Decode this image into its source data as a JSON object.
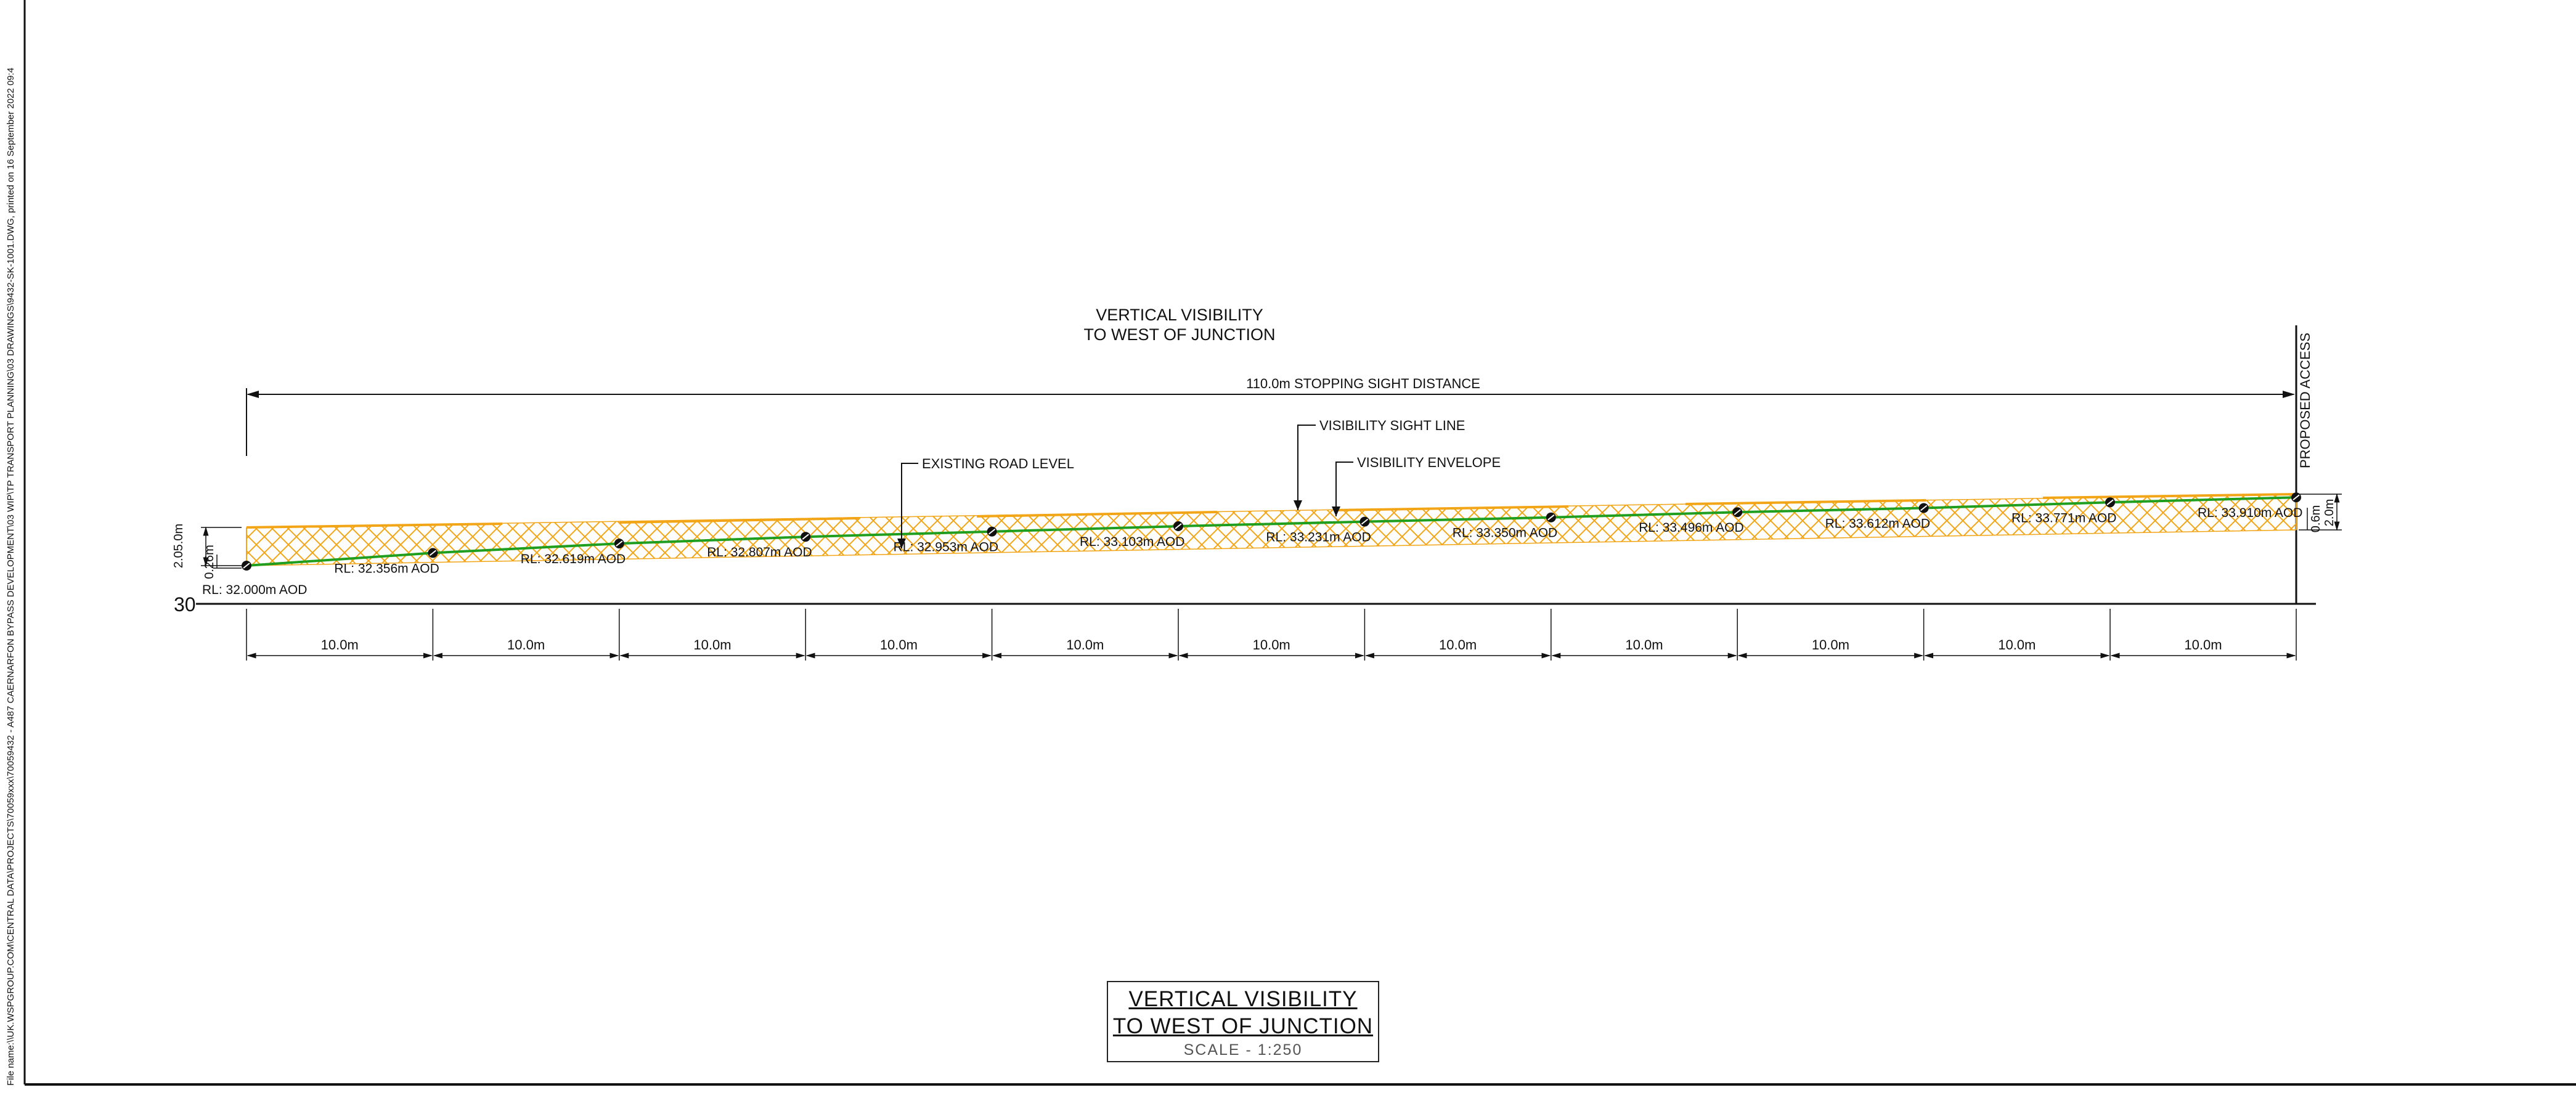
{
  "file_path_note": "File name:\\\\UK.WSPGROUP.COM\\CENTRAL DATA\\PROJECTS\\70059xxx\\70059432 - A487 CAERNARFON BYPASS DEVELOPMENT\\03 WIP\\TP TRANSPORT PLANNING\\03 DRAWINGS\\9432-SK-1001.DWG, printed on 16 September 2022 09:4",
  "heading": {
    "line1": "VERTICAL  VISIBILITY",
    "line2": "TO  WEST  OF  JUNCTION"
  },
  "overall_dimension": "110.0m  STOPPING  SIGHT  DISTANCE",
  "access_label": "PROPOSED  ACCESS",
  "callouts": {
    "existing_road_level": "EXISTING  ROAD  LEVEL",
    "visibility_sight_line": "VISIBILITY  SIGHT  LINE",
    "visibility_envelope": "VISIBILITY  ENVELOPE"
  },
  "datum_label": "30",
  "left_dims": {
    "upper": "2.05.0m",
    "lower": "0.26m"
  },
  "right_dims": {
    "inner": "0.6m",
    "outer": "2.0m"
  },
  "segment_label": "10.0m",
  "level_labels": [
    "RL:  32.000m  AOD",
    "RL:  32.356m  AOD",
    "RL:  32.619m  AOD",
    "RL:  32.807m  AOD",
    "RL:  32.953m  AOD",
    "RL:  33.103m  AOD",
    "RL:  33.231m  AOD",
    "RL:  33.350m  AOD",
    "RL:  33.496m  AOD",
    "RL:  33.612m  AOD",
    "RL:  33.771m  AOD",
    "RL:  33.910m  AOD"
  ],
  "levels_m": [
    32.0,
    32.356,
    32.619,
    32.807,
    32.953,
    33.103,
    33.231,
    33.35,
    33.496,
    33.612,
    33.771,
    33.91
  ],
  "datum_m": 30,
  "chainage_step_m": 10,
  "title_block": {
    "line1": "VERTICAL  VISIBILITY",
    "line2": "TO  WEST  OF  JUNCTION",
    "scale": "SCALE  -  1:250"
  },
  "colors": {
    "road": "#1f9e1f",
    "envelope": "#f2a516",
    "ink": "#111111",
    "border": "#111111"
  }
}
